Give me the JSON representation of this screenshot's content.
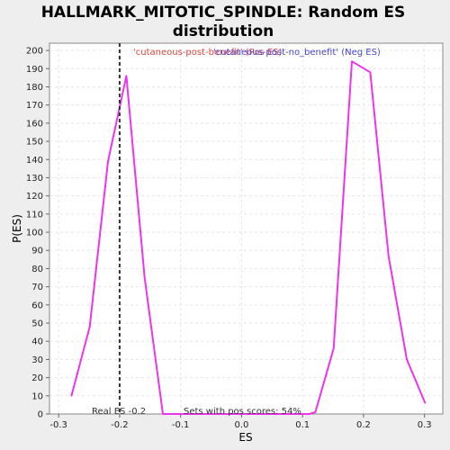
{
  "chart_data": {
    "type": "line",
    "title": "HALLMARK_MITOTIC_SPINDLE: Random ES distribution",
    "title_lines": [
      "HALLMARK_MITOTIC_SPINDLE: Random ES",
      "distribution"
    ],
    "xlabel": "ES",
    "ylabel": "P(ES)",
    "xlim": [
      -0.315,
      0.33
    ],
    "ylim": [
      0,
      204
    ],
    "xticks": [
      -0.3,
      -0.2,
      -0.1,
      0.0,
      0.1,
      0.2,
      0.3
    ],
    "xtick_labels": [
      "-0.3",
      "-0.2",
      "-0.1",
      "0.0",
      "0.1",
      "0.2",
      "0.3"
    ],
    "yticks": [
      0,
      10,
      20,
      30,
      40,
      50,
      60,
      70,
      80,
      90,
      100,
      110,
      120,
      130,
      140,
      150,
      160,
      170,
      180,
      190,
      200
    ],
    "grid": true,
    "series": [
      {
        "name": "cutaneous-post-benefit' (Pos ES)",
        "color": "#ee33ee",
        "x": [
          -0.279,
          -0.249,
          -0.219,
          -0.189,
          -0.159,
          -0.129,
          -0.099,
          -0.069,
          -0.039,
          -0.009,
          0.021,
          0.051,
          0.081,
          0.111,
          0.121,
          0.151,
          0.181,
          0.211,
          0.241,
          0.271,
          0.301
        ],
        "y": [
          10,
          48,
          139,
          186,
          75,
          0,
          0,
          0,
          0,
          0,
          0,
          0,
          0,
          0,
          1,
          36,
          194,
          188,
          87,
          30,
          6
        ]
      }
    ],
    "legend": [
      {
        "label": "'cutaneous-post-benefit' (Pos ES)",
        "color": "#dd4444"
      },
      {
        "label": "'cutaneous-post-no_benefit' (Neg ES)",
        "color": "#4444cc"
      }
    ],
    "real_es": {
      "x": -0.2,
      "label": "Real ES -0.2"
    },
    "annotation": "Sets with pos scores: 54%"
  }
}
